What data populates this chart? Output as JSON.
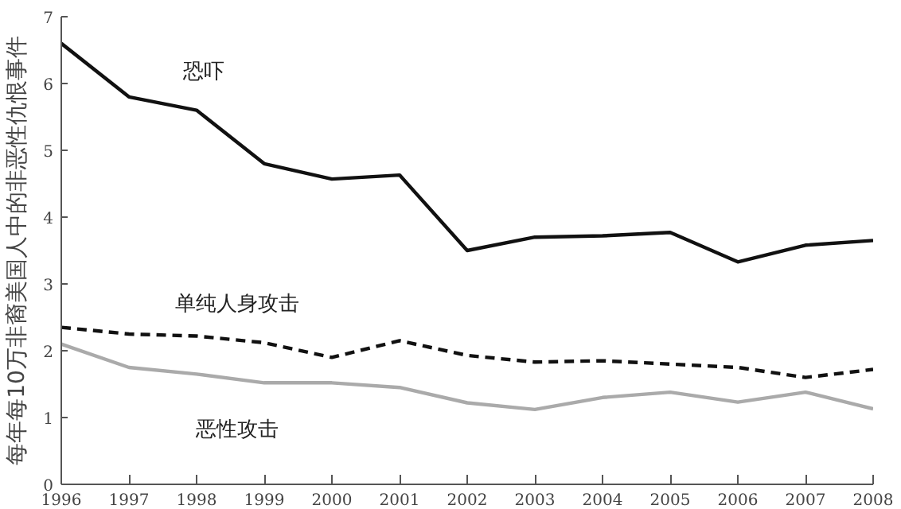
{
  "chart_data": {
    "type": "line",
    "ylabel": "每年每10万非裔美国人中的非恶性仇恨事件",
    "x": [
      1996,
      1997,
      1998,
      1999,
      2000,
      2001,
      2002,
      2003,
      2004,
      2005,
      2006,
      2007,
      2008
    ],
    "xlim": [
      1996,
      2008
    ],
    "xticks": [
      1996,
      1997,
      1998,
      1999,
      2000,
      2001,
      2002,
      2003,
      2004,
      2005,
      2006,
      2007,
      2008
    ],
    "ylim": [
      0,
      7
    ],
    "yticks": [
      0,
      1,
      2,
      3,
      4,
      5,
      6,
      7
    ],
    "grid": false,
    "marker": "none",
    "series": [
      {
        "name": "恐吓",
        "color": "#111111",
        "line_style": "solid",
        "values": [
          6.6,
          5.8,
          5.6,
          4.8,
          4.57,
          4.63,
          3.5,
          3.7,
          3.72,
          3.77,
          3.33,
          3.58,
          3.65
        ]
      },
      {
        "name": "单纯人身攻击",
        "color": "#111111",
        "line_style": "dashed",
        "values": [
          2.35,
          2.25,
          2.22,
          2.12,
          1.9,
          2.15,
          1.93,
          1.83,
          1.85,
          1.8,
          1.75,
          1.6,
          1.72
        ]
      },
      {
        "name": "恶性攻击",
        "color": "#aaaaaa",
        "line_style": "solid",
        "values": [
          2.1,
          1.75,
          1.65,
          1.52,
          1.52,
          1.45,
          1.22,
          1.12,
          1.3,
          1.38,
          1.23,
          1.38,
          1.13
        ]
      }
    ]
  }
}
